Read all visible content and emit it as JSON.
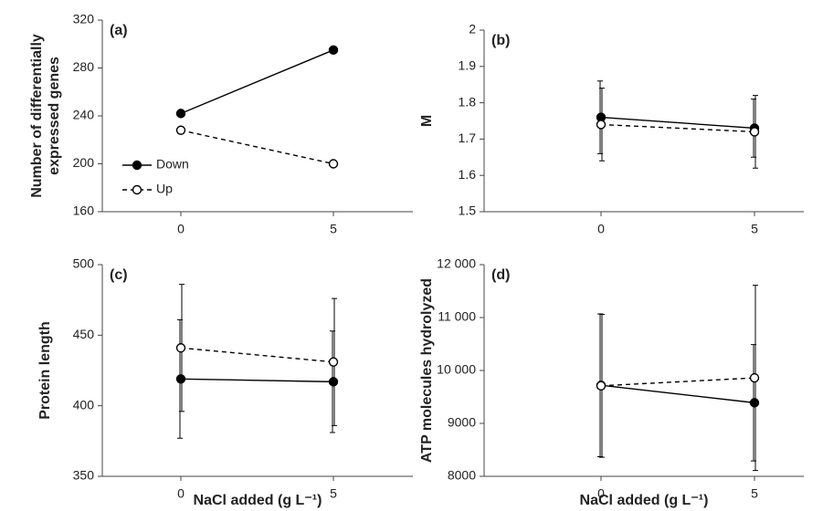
{
  "chart_data": [
    {
      "type": "line",
      "panel": "(a)",
      "ylabel": [
        "Number of differentially",
        "expressed genes"
      ],
      "categories": [
        "0",
        "5"
      ],
      "ylim": [
        160,
        320
      ],
      "yticks": [
        160,
        200,
        240,
        280,
        320
      ],
      "legend": "left",
      "series": [
        {
          "name": "Down",
          "color": "#000000",
          "line_style": "solid",
          "marker": "filled",
          "values": [
            242,
            295
          ]
        },
        {
          "name": "Up",
          "color": "#000000",
          "line_style": "dashed",
          "marker": "open",
          "values": [
            228,
            200
          ]
        }
      ]
    },
    {
      "type": "line",
      "panel": "(b)",
      "ylabel": [
        "M"
      ],
      "categories": [
        "0",
        "5"
      ],
      "ylim": [
        1.5,
        2
      ],
      "yticks": [
        1.5,
        1.6,
        1.7,
        1.8,
        1.9,
        2
      ],
      "series": [
        {
          "color": "#000000",
          "line_style": "solid",
          "marker": "filled",
          "values": [
            1.76,
            1.73
          ],
          "errors": [
            0.1,
            0.08
          ]
        },
        {
          "color": "#000000",
          "line_style": "dashed",
          "marker": "open",
          "values": [
            1.74,
            1.72
          ],
          "errors": [
            0.1,
            0.1
          ]
        }
      ]
    },
    {
      "type": "line",
      "panel": "(c)",
      "ylabel": [
        "Protein length"
      ],
      "xlabel": "NaCl added (g L⁻¹)",
      "categories": [
        "0",
        "5"
      ],
      "ylim": [
        350,
        500
      ],
      "yticks": [
        350,
        400,
        450,
        500
      ],
      "series": [
        {
          "color": "#000000",
          "line_style": "solid",
          "marker": "filled",
          "values": [
            419,
            417
          ],
          "errors": [
            42,
            36
          ]
        },
        {
          "color": "#000000",
          "line_style": "dashed",
          "marker": "open",
          "values": [
            441,
            431
          ],
          "errors": [
            45,
            45
          ]
        }
      ]
    },
    {
      "type": "line",
      "panel": "(d)",
      "ylabel": [
        "ATP molecules hydrolyzed"
      ],
      "xlabel": "NaCl added (g L⁻¹)",
      "categories": [
        "0",
        "5"
      ],
      "ylim": [
        8000,
        12000
      ],
      "yticks": [
        8000,
        9000,
        {
          "value": 10000,
          "label": "10 000"
        },
        {
          "value": 11000,
          "label": "11 000"
        },
        {
          "value": 12000,
          "label": "12 000"
        }
      ],
      "series": [
        {
          "color": "#000000",
          "line_style": "solid",
          "marker": "filled",
          "values": [
            9720,
            9390
          ],
          "errors": [
            1350,
            1100
          ]
        },
        {
          "color": "#000000",
          "line_style": "dashed",
          "marker": "open",
          "values": [
            9710,
            9860
          ],
          "errors": [
            1350,
            1750
          ]
        }
      ]
    }
  ]
}
